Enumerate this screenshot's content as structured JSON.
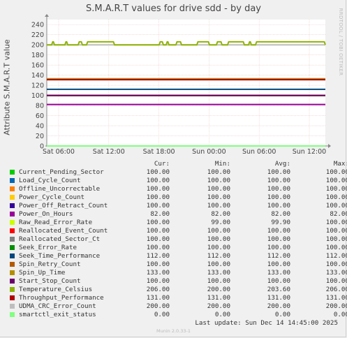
{
  "chart_data": {
    "type": "line",
    "title": "S.M.A.R.T values for drive sdd - by day",
    "ylabel": "Attribute S.M.A.R.T value",
    "ylim": [
      0,
      250
    ],
    "yticks": [
      0,
      20,
      40,
      60,
      80,
      100,
      120,
      140,
      160,
      180,
      200,
      220,
      240
    ],
    "xlim": [
      "Sat 04:30",
      "Sun 14:45"
    ],
    "xticks": [
      "Sat 06:00",
      "Sat 12:00",
      "Sat 18:00",
      "Sun 00:00",
      "Sun 06:00",
      "Sun 12:00"
    ],
    "grid": true,
    "legend_position": "bottom",
    "columns": [
      "Cur:",
      "Min:",
      "Avg:",
      "Max:"
    ],
    "series": [
      {
        "name": "Current_Pending_Sector",
        "color": "#00cc00",
        "cur": "100.00",
        "min": "100.00",
        "avg": "100.00",
        "max": "100.00",
        "value": 100
      },
      {
        "name": "Load_Cycle_Count",
        "color": "#0066b3",
        "cur": "100.00",
        "min": "100.00",
        "avg": "100.00",
        "max": "100.00",
        "value": 100
      },
      {
        "name": "Offline_Uncorrectable",
        "color": "#ff8000",
        "cur": "100.00",
        "min": "100.00",
        "avg": "100.00",
        "max": "100.00",
        "value": 100
      },
      {
        "name": "Power_Cycle_Count",
        "color": "#ffcc00",
        "cur": "100.00",
        "min": "100.00",
        "avg": "100.00",
        "max": "100.00",
        "value": 100
      },
      {
        "name": "Power_Off_Retract_Count",
        "color": "#330099",
        "cur": "100.00",
        "min": "100.00",
        "avg": "100.00",
        "max": "100.00",
        "value": 100
      },
      {
        "name": "Power_On_Hours",
        "color": "#990099",
        "cur": "82.00",
        "min": "82.00",
        "avg": "82.00",
        "max": "82.00",
        "value": 82
      },
      {
        "name": "Raw_Read_Error_Rate",
        "color": "#ccff00",
        "cur": "100.00",
        "min": "99.00",
        "avg": "99.90",
        "max": "100.00",
        "value": 100
      },
      {
        "name": "Reallocated_Event_Count",
        "color": "#ff0000",
        "cur": "100.00",
        "min": "100.00",
        "avg": "100.00",
        "max": "100.00",
        "value": 100
      },
      {
        "name": "Reallocated_Sector_Ct",
        "color": "#808080",
        "cur": "100.00",
        "min": "100.00",
        "avg": "100.00",
        "max": "100.00",
        "value": 100
      },
      {
        "name": "Seek_Error_Rate",
        "color": "#008f00",
        "cur": "100.00",
        "min": "100.00",
        "avg": "100.00",
        "max": "100.00",
        "value": 100
      },
      {
        "name": "Seek_Time_Performance",
        "color": "#00487d",
        "cur": "112.00",
        "min": "112.00",
        "avg": "112.00",
        "max": "112.00",
        "value": 112
      },
      {
        "name": "Spin_Retry_Count",
        "color": "#b35a00",
        "cur": "100.00",
        "min": "100.00",
        "avg": "100.00",
        "max": "100.00",
        "value": 100
      },
      {
        "name": "Spin_Up_Time",
        "color": "#b38f00",
        "cur": "133.00",
        "min": "133.00",
        "avg": "133.00",
        "max": "133.00",
        "value": 133
      },
      {
        "name": "Start_Stop_Count",
        "color": "#6b006b",
        "cur": "100.00",
        "min": "100.00",
        "avg": "100.00",
        "max": "100.00",
        "value": 100
      },
      {
        "name": "Temperature_Celsius",
        "color": "#8fb300",
        "cur": "206.00",
        "min": "200.00",
        "avg": "203.60",
        "max": "206.00",
        "value": 206
      },
      {
        "name": "Throughput_Performance",
        "color": "#b30000",
        "cur": "131.00",
        "min": "131.00",
        "avg": "131.00",
        "max": "131.00",
        "value": 131
      },
      {
        "name": "UDMA_CRC_Error_Count",
        "color": "#bebebe",
        "cur": "200.00",
        "min": "200.00",
        "avg": "200.00",
        "max": "200.00",
        "value": 200
      },
      {
        "name": "smartctl_exit_status",
        "color": "#80ff80",
        "cur": "0.00",
        "min": "0.00",
        "avg": "0.00",
        "max": "0.00",
        "value": 0
      }
    ]
  },
  "last_update": "Last update:  Sun Dec 14 14:45:00 2025",
  "watermark": "RRDTOOL / TOBI OETIKER",
  "footer": "Munin 2.0.33-1"
}
